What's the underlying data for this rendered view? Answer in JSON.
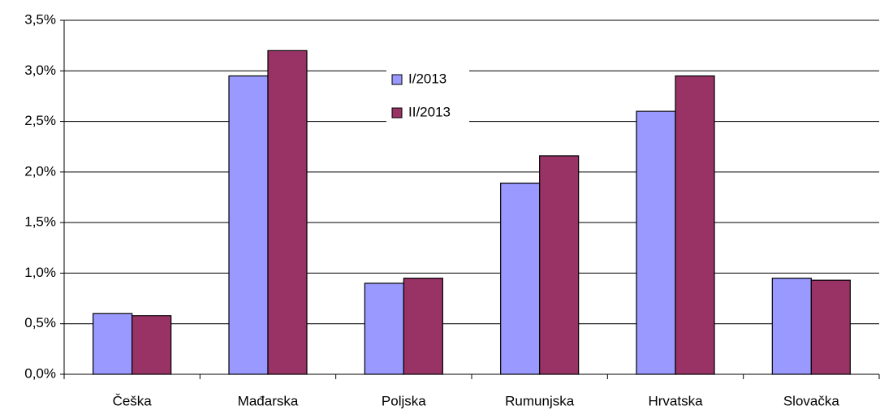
{
  "chart_data": {
    "type": "bar",
    "categories": [
      "Češka",
      "Mađarska",
      "Poljska",
      "Rumunjska",
      "Hrvatska",
      "Slovačka"
    ],
    "series": [
      {
        "name": "I/2013",
        "color": "#9999ff",
        "values": [
          0.6,
          2.95,
          0.9,
          1.89,
          2.6,
          0.95
        ]
      },
      {
        "name": "II/2013",
        "color": "#993366",
        "values": [
          0.58,
          3.2,
          0.95,
          2.16,
          2.95,
          0.93
        ]
      }
    ],
    "ylim": [
      0,
      3.5
    ],
    "yticks": [
      {
        "value": 0,
        "label": "0,0%"
      },
      {
        "value": 0.5,
        "label": "0,5%"
      },
      {
        "value": 1,
        "label": "1,0%"
      },
      {
        "value": 1.5,
        "label": "1,5%"
      },
      {
        "value": 2,
        "label": "2,0%"
      },
      {
        "value": 2.5,
        "label": "2,5%"
      },
      {
        "value": 3,
        "label": "3,0%"
      },
      {
        "value": 3.5,
        "label": "3,5%"
      }
    ],
    "grid": true
  }
}
